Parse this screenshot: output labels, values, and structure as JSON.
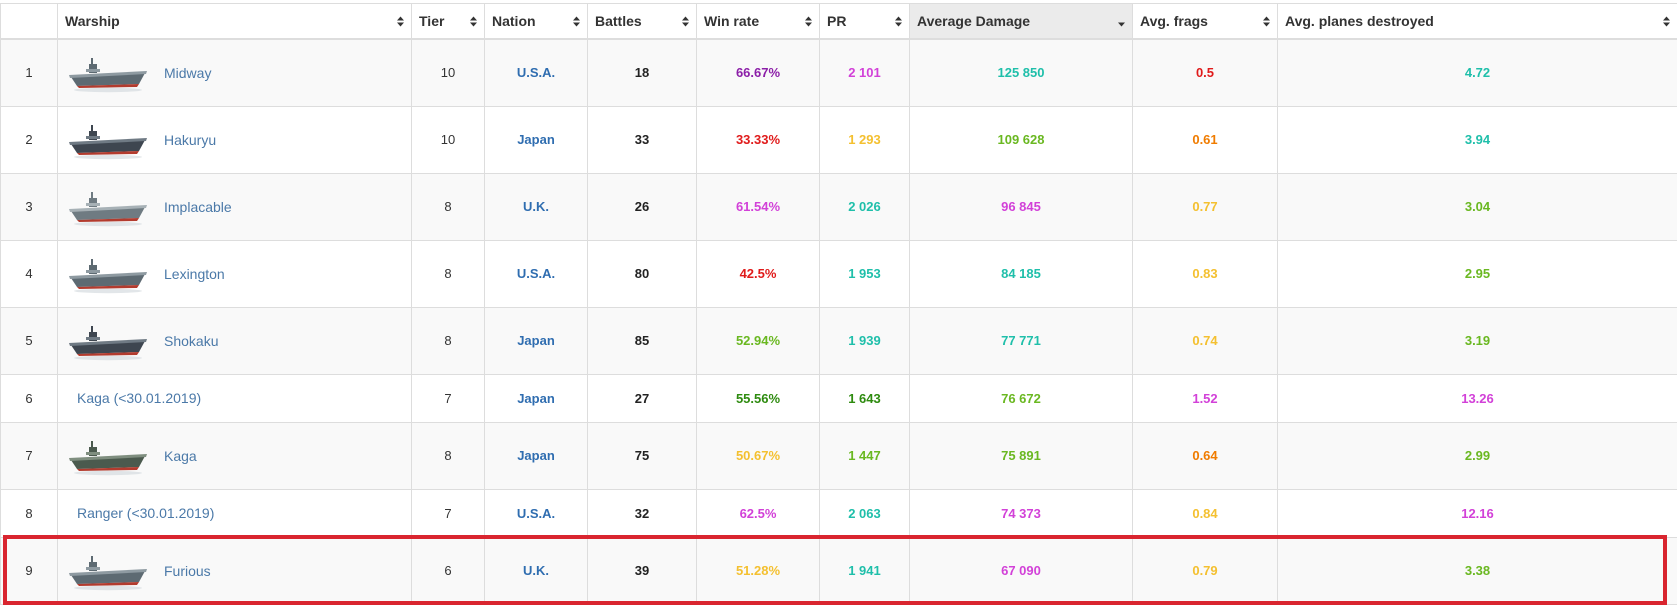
{
  "colors": {
    "highlight_border": "#d9252f",
    "ship_link": "#4b79a8",
    "nation": "#2f6db0",
    "rating": {
      "bad": "#e01b1b",
      "below_avg": "#f07c00",
      "avg": "#f4c030",
      "good": "#6ab821",
      "very_good": "#2e8b0f",
      "great": "#1fbfaa",
      "unicum": "#d241d8",
      "super_unicum": "#8c1fa8"
    }
  },
  "columns": [
    {
      "label": "",
      "sortable": false,
      "sorted": false
    },
    {
      "label": "Warship",
      "sortable": true,
      "sorted": false
    },
    {
      "label": "Tier",
      "sortable": true,
      "sorted": false
    },
    {
      "label": "Nation",
      "sortable": true,
      "sorted": false
    },
    {
      "label": "Battles",
      "sortable": true,
      "sorted": false
    },
    {
      "label": "Win rate",
      "sortable": true,
      "sorted": false
    },
    {
      "label": "PR",
      "sortable": true,
      "sorted": false
    },
    {
      "label": "Average Damage",
      "sortable": true,
      "sorted": true,
      "direction": "desc"
    },
    {
      "label": "Avg. frags",
      "sortable": true,
      "sorted": false
    },
    {
      "label": "Avg. planes destroyed",
      "sortable": true,
      "sorted": false
    }
  ],
  "rows": [
    {
      "rank": "1",
      "ship": "Midway",
      "image": "ship-carrier-grey",
      "tier": "10",
      "nation": "U.S.A.",
      "battles": "18",
      "win_rate": "66.67%",
      "win_rate_color": "super_unicum",
      "pr": "2 101",
      "pr_color": "unicum",
      "avg_damage": "125 850",
      "avg_damage_color": "great",
      "avg_frags": "0.5",
      "avg_frags_color": "bad",
      "avg_planes": "4.72",
      "avg_planes_color": "great"
    },
    {
      "rank": "2",
      "ship": "Hakuryu",
      "image": "ship-carrier-dark",
      "tier": "10",
      "nation": "Japan",
      "battles": "33",
      "win_rate": "33.33%",
      "win_rate_color": "bad",
      "pr": "1 293",
      "pr_color": "avg",
      "avg_damage": "109 628",
      "avg_damage_color": "good",
      "avg_frags": "0.61",
      "avg_frags_color": "below_avg",
      "avg_planes": "3.94",
      "avg_planes_color": "great"
    },
    {
      "rank": "3",
      "ship": "Implacable",
      "image": "ship-carrier-light",
      "tier": "8",
      "nation": "U.K.",
      "battles": "26",
      "win_rate": "61.54%",
      "win_rate_color": "unicum",
      "pr": "2 026",
      "pr_color": "great",
      "avg_damage": "96 845",
      "avg_damage_color": "unicum",
      "avg_frags": "0.77",
      "avg_frags_color": "avg",
      "avg_planes": "3.04",
      "avg_planes_color": "good"
    },
    {
      "rank": "4",
      "ship": "Lexington",
      "image": "ship-carrier-grey",
      "tier": "8",
      "nation": "U.S.A.",
      "battles": "80",
      "win_rate": "42.5%",
      "win_rate_color": "bad",
      "pr": "1 953",
      "pr_color": "great",
      "avg_damage": "84 185",
      "avg_damage_color": "great",
      "avg_frags": "0.83",
      "avg_frags_color": "avg",
      "avg_planes": "2.95",
      "avg_planes_color": "good"
    },
    {
      "rank": "5",
      "ship": "Shokaku",
      "image": "ship-carrier-dark",
      "tier": "8",
      "nation": "Japan",
      "battles": "85",
      "win_rate": "52.94%",
      "win_rate_color": "good",
      "pr": "1 939",
      "pr_color": "great",
      "avg_damage": "77 771",
      "avg_damage_color": "great",
      "avg_frags": "0.74",
      "avg_frags_color": "avg",
      "avg_planes": "3.19",
      "avg_planes_color": "good"
    },
    {
      "rank": "6",
      "ship": "Kaga (<30.01.2019)",
      "image": "",
      "tier": "7",
      "nation": "Japan",
      "battles": "27",
      "win_rate": "55.56%",
      "win_rate_color": "very_good",
      "pr": "1 643",
      "pr_color": "very_good",
      "avg_damage": "76 672",
      "avg_damage_color": "good",
      "avg_frags": "1.52",
      "avg_frags_color": "unicum",
      "avg_planes": "13.26",
      "avg_planes_color": "unicum"
    },
    {
      "rank": "7",
      "ship": "Kaga",
      "image": "ship-carrier-green",
      "tier": "8",
      "nation": "Japan",
      "battles": "75",
      "win_rate": "50.67%",
      "win_rate_color": "avg",
      "pr": "1 447",
      "pr_color": "good",
      "avg_damage": "75 891",
      "avg_damage_color": "good",
      "avg_frags": "0.64",
      "avg_frags_color": "below_avg",
      "avg_planes": "2.99",
      "avg_planes_color": "good"
    },
    {
      "rank": "8",
      "ship": "Ranger (<30.01.2019)",
      "image": "",
      "tier": "7",
      "nation": "U.S.A.",
      "battles": "32",
      "win_rate": "62.5%",
      "win_rate_color": "unicum",
      "pr": "2 063",
      "pr_color": "great",
      "avg_damage": "74 373",
      "avg_damage_color": "unicum",
      "avg_frags": "0.84",
      "avg_frags_color": "avg",
      "avg_planes": "12.16",
      "avg_planes_color": "unicum"
    },
    {
      "rank": "9",
      "ship": "Furious",
      "image": "ship-carrier-grey",
      "tier": "6",
      "nation": "U.K.",
      "battles": "39",
      "win_rate": "51.28%",
      "win_rate_color": "avg",
      "pr": "1 941",
      "pr_color": "great",
      "avg_damage": "67 090",
      "avg_damage_color": "unicum",
      "avg_frags": "0.79",
      "avg_frags_color": "avg",
      "avg_planes": "3.38",
      "avg_planes_color": "good",
      "highlighted": true
    }
  ]
}
